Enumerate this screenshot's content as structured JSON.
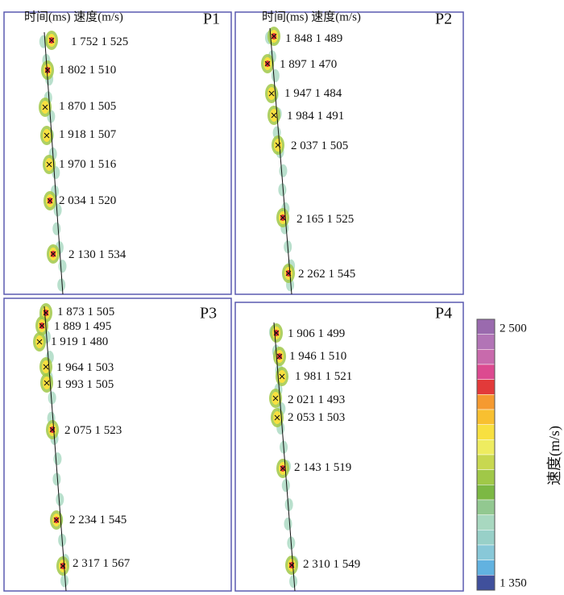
{
  "header": "时间(ms) 速度(m/s)",
  "panels": [
    {
      "label": "P1",
      "picks": [
        {
          "time": "1 752",
          "velocity": "1 525"
        },
        {
          "time": "1 802",
          "velocity": "1 510"
        },
        {
          "time": "1 870",
          "velocity": "1 505"
        },
        {
          "time": "1 918",
          "velocity": "1 507"
        },
        {
          "time": "1 970",
          "velocity": "1 516"
        },
        {
          "time": "2 034",
          "velocity": "1 520"
        },
        {
          "time": "2 130",
          "velocity": "1 534"
        }
      ]
    },
    {
      "label": "P2",
      "picks": [
        {
          "time": "1 848",
          "velocity": "1 489"
        },
        {
          "time": "1 897",
          "velocity": "1 470"
        },
        {
          "time": "1 947",
          "velocity": "1 484"
        },
        {
          "time": "1 984",
          "velocity": "1 491"
        },
        {
          "time": "2 037",
          "velocity": "1 505"
        },
        {
          "time": "2 165",
          "velocity": "1 525"
        },
        {
          "time": "2 262",
          "velocity": "1 545"
        }
      ]
    },
    {
      "label": "P3",
      "picks": [
        {
          "time": "1 873",
          "velocity": "1 505"
        },
        {
          "time": "1 889",
          "velocity": "1 495"
        },
        {
          "time": "1 919",
          "velocity": "1 480"
        },
        {
          "time": "1 964",
          "velocity": "1 503"
        },
        {
          "time": "1 993",
          "velocity": "1 505"
        },
        {
          "time": "2 075",
          "velocity": "1 523"
        },
        {
          "time": "2 234",
          "velocity": "1 545"
        },
        {
          "time": "2 317",
          "velocity": "1 567"
        }
      ]
    },
    {
      "label": "P4",
      "picks": [
        {
          "time": "1 906",
          "velocity": "1 499"
        },
        {
          "time": "1 946",
          "velocity": "1 510"
        },
        {
          "time": "1 981",
          "velocity": "1 521"
        },
        {
          "time": "2 021",
          "velocity": "1 493"
        },
        {
          "time": "2 053",
          "velocity": "1 503"
        },
        {
          "time": "2 143",
          "velocity": "1 519"
        },
        {
          "time": "2 310",
          "velocity": "1 549"
        }
      ]
    }
  ],
  "colorbar": {
    "max_label": "2 500",
    "min_label": "1 350",
    "title": "速度(m/s)"
  }
}
